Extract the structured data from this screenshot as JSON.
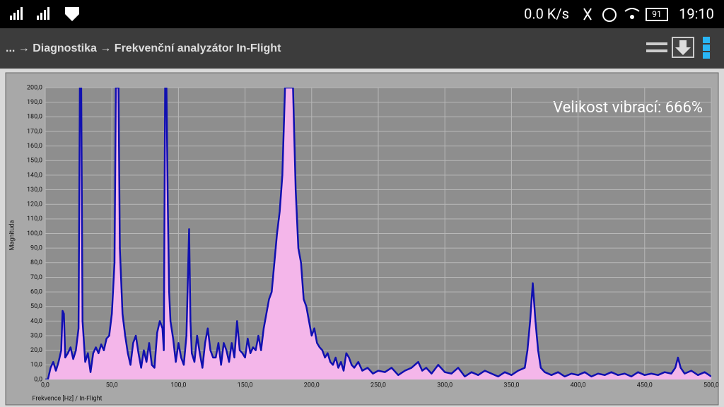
{
  "status_bar": {
    "speed": "0.0 K/s",
    "battery": "91",
    "time": "19:10"
  },
  "toolbar": {
    "breadcrumb": "... → Diagnostika → Frekvenční analyzátor In-Flight"
  },
  "chart_data": {
    "type": "area",
    "annotation": "Velikost vibrací:  666%",
    "xlabel": "Frekvence [Hz] / In-Flight",
    "ylabel": "Magnituda",
    "xlim": [
      0,
      500
    ],
    "ylim": [
      0,
      200
    ],
    "xticks": [
      {
        "value": 0,
        "label": "0,0"
      },
      {
        "value": 50,
        "label": "50,0"
      },
      {
        "value": 100,
        "label": "100,0"
      },
      {
        "value": 150,
        "label": "150,0"
      },
      {
        "value": 200,
        "label": "200,0"
      },
      {
        "value": 250,
        "label": "250,0"
      },
      {
        "value": 300,
        "label": "300,0"
      },
      {
        "value": 350,
        "label": "350,0"
      },
      {
        "value": 400,
        "label": "400,0"
      },
      {
        "value": 450,
        "label": "450,0"
      },
      {
        "value": 500,
        "label": "500,0"
      }
    ],
    "yticks": [
      {
        "value": 0,
        "label": "0,0"
      },
      {
        "value": 10,
        "label": "10,0"
      },
      {
        "value": 20,
        "label": "20,0"
      },
      {
        "value": 30,
        "label": "30,0"
      },
      {
        "value": 40,
        "label": "40,0"
      },
      {
        "value": 50,
        "label": "50,0"
      },
      {
        "value": 60,
        "label": "60,0"
      },
      {
        "value": 70,
        "label": "70,0"
      },
      {
        "value": 80,
        "label": "80,0"
      },
      {
        "value": 90,
        "label": "90,0"
      },
      {
        "value": 100,
        "label": "100,0"
      },
      {
        "value": 110,
        "label": "110,0"
      },
      {
        "value": 120,
        "label": "120,0"
      },
      {
        "value": 130,
        "label": "130,0"
      },
      {
        "value": 140,
        "label": "140,0"
      },
      {
        "value": 150,
        "label": "150,0"
      },
      {
        "value": 160,
        "label": "160,0"
      },
      {
        "value": 170,
        "label": "170,0"
      },
      {
        "value": 180,
        "label": "180,0"
      },
      {
        "value": 190,
        "label": "190,0"
      },
      {
        "value": 200,
        "label": "200,0"
      }
    ],
    "grid": true,
    "x": [
      0,
      2,
      4,
      6,
      8,
      10,
      12,
      13,
      14,
      15,
      17,
      19,
      21,
      23,
      25,
      26,
      27,
      28,
      30,
      32,
      34,
      36,
      38,
      40,
      42,
      44,
      46,
      48,
      50,
      52,
      53,
      55,
      56,
      58,
      60,
      62,
      64,
      66,
      68,
      70,
      72,
      74,
      76,
      78,
      80,
      82,
      84,
      86,
      88,
      89,
      90,
      91,
      92,
      93,
      94,
      96,
      98,
      100,
      102,
      104,
      106,
      108,
      109,
      110,
      112,
      114,
      116,
      118,
      120,
      122,
      124,
      126,
      128,
      130,
      132,
      134,
      136,
      138,
      140,
      142,
      144,
      146,
      148,
      150,
      152,
      154,
      156,
      158,
      160,
      162,
      164,
      166,
      168,
      170,
      172,
      174,
      176,
      178,
      180,
      182,
      184,
      186,
      188,
      190,
      192,
      194,
      196,
      198,
      200,
      202,
      204,
      206,
      208,
      210,
      212,
      214,
      216,
      218,
      220,
      222,
      224,
      226,
      228,
      230,
      232,
      235,
      238,
      242,
      246,
      250,
      255,
      260,
      265,
      270,
      275,
      280,
      283,
      286,
      290,
      295,
      300,
      305,
      310,
      315,
      320,
      325,
      330,
      335,
      340,
      345,
      350,
      355,
      360,
      362,
      364,
      366,
      368,
      370,
      372,
      375,
      380,
      385,
      390,
      395,
      400,
      405,
      410,
      415,
      420,
      425,
      430,
      435,
      440,
      445,
      450,
      455,
      460,
      465,
      470,
      473,
      475,
      477,
      480,
      485,
      490,
      495,
      500
    ],
    "series": [
      {
        "name": "Magnituda",
        "color": "#1010b0",
        "fill": "#f4b6ea",
        "values": [
          0,
          0,
          8,
          12,
          6,
          12,
          20,
          47,
          45,
          15,
          18,
          22,
          14,
          20,
          35,
          200,
          200,
          40,
          12,
          18,
          5,
          18,
          22,
          18,
          24,
          20,
          28,
          30,
          45,
          80,
          200,
          200,
          90,
          45,
          30,
          18,
          10,
          25,
          30,
          18,
          8,
          20,
          12,
          25,
          10,
          8,
          32,
          40,
          35,
          20,
          200,
          200,
          120,
          60,
          40,
          28,
          12,
          25,
          15,
          10,
          30,
          103,
          40,
          18,
          12,
          30,
          18,
          8,
          25,
          35,
          20,
          15,
          15,
          25,
          10,
          25,
          20,
          12,
          25,
          15,
          40,
          20,
          18,
          15,
          28,
          18,
          22,
          20,
          30,
          20,
          35,
          45,
          55,
          60,
          80,
          100,
          115,
          140,
          200,
          200,
          200,
          200,
          130,
          90,
          80,
          55,
          50,
          40,
          30,
          35,
          25,
          22,
          20,
          15,
          18,
          12,
          10,
          15,
          8,
          12,
          6,
          18,
          15,
          10,
          8,
          12,
          6,
          8,
          4,
          6,
          5,
          8,
          3,
          6,
          8,
          12,
          6,
          8,
          4,
          10,
          5,
          4,
          8,
          2,
          5,
          3,
          6,
          4,
          2,
          5,
          3,
          6,
          8,
          20,
          40,
          66,
          40,
          20,
          8,
          5,
          3,
          5,
          2,
          4,
          3,
          5,
          2,
          4,
          3,
          5,
          3,
          4,
          2,
          5,
          3,
          4,
          3,
          5,
          4,
          8,
          15,
          8,
          4,
          6,
          3,
          5,
          2
        ]
      }
    ]
  }
}
